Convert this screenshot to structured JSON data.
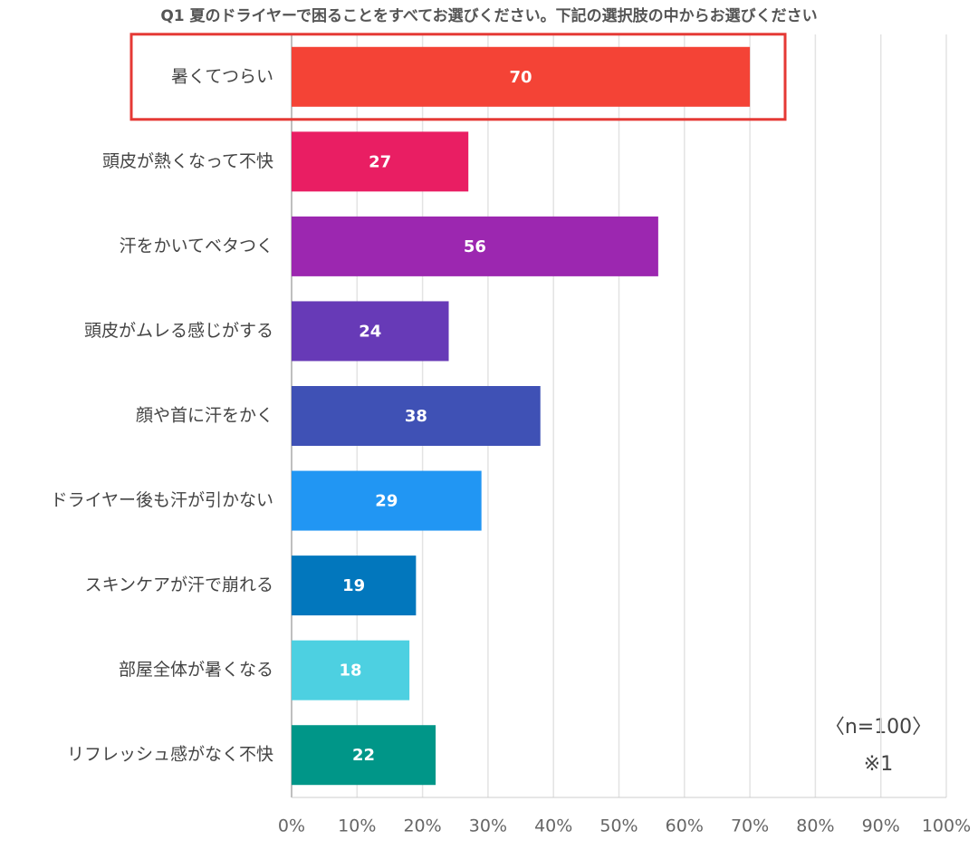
{
  "chart_data": {
    "type": "barh",
    "title": "Q1 夏のドライヤーで困ることをすべてお選びください。下記の選択肢の中からお選びください",
    "categories": [
      "暑くてつらい",
      "頭皮が熱くなって不快",
      "汗をかいてベタつく",
      "頭皮がムレる感じがする",
      "顔や首に汗をかく",
      "ドライヤー後も汗が引かない",
      "スキンケアが汗で崩れる",
      "部屋全体が暑くなる",
      "リフレッシュ感がなく不快"
    ],
    "values": [
      70,
      27,
      56,
      24,
      38,
      29,
      19,
      18,
      22
    ],
    "colors": [
      "#f44336",
      "#e91e63",
      "#9c27b0",
      "#673ab7",
      "#3f51b5",
      "#2196f3",
      "#0277bd",
      "#4dd0e1",
      "#009688"
    ],
    "xlim": [
      0,
      100
    ],
    "xticks": [
      {
        "value": 0,
        "label": "0%"
      },
      {
        "value": 10,
        "label": "10%"
      },
      {
        "value": 20,
        "label": "20%"
      },
      {
        "value": 30,
        "label": "30%"
      },
      {
        "value": 40,
        "label": "40%"
      },
      {
        "value": 50,
        "label": "50%"
      },
      {
        "value": 60,
        "label": "60%"
      },
      {
        "value": 70,
        "label": "70%"
      },
      {
        "value": 80,
        "label": "80%"
      },
      {
        "value": 90,
        "label": "90%"
      },
      {
        "value": 100,
        "label": "100%"
      }
    ],
    "grid": true,
    "annotations": [
      "〈n=100〉",
      "※1"
    ]
  }
}
